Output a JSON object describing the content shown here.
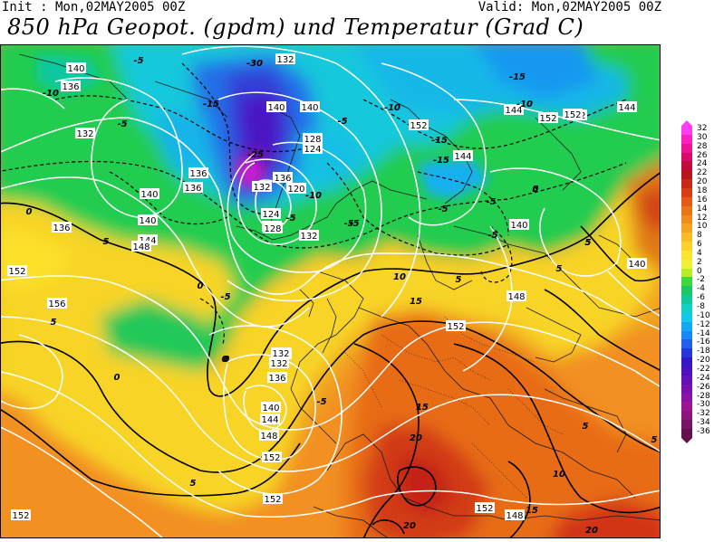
{
  "header": {
    "init": "Init : Mon,02MAY2005 00Z",
    "valid": "Valid: Mon,02MAY2005 00Z",
    "title": "850 hPa Geopot. (gpdm) und Temperatur (Grad C)"
  },
  "legend": {
    "entries": [
      {
        "label": "32",
        "color": "#ff3df2"
      },
      {
        "label": "30",
        "color": "#ff20c4"
      },
      {
        "label": "28",
        "color": "#ee1296"
      },
      {
        "label": "26",
        "color": "#d80a6a"
      },
      {
        "label": "24",
        "color": "#c40a3c"
      },
      {
        "label": "22",
        "color": "#b8141e"
      },
      {
        "label": "20",
        "color": "#c82814"
      },
      {
        "label": "18",
        "color": "#d83e14"
      },
      {
        "label": "16",
        "color": "#e45a14"
      },
      {
        "label": "14",
        "color": "#ec7418"
      },
      {
        "label": "12",
        "color": "#f08c1c"
      },
      {
        "label": "10",
        "color": "#f4a420"
      },
      {
        "label": "8",
        "color": "#f8bc24"
      },
      {
        "label": "6",
        "color": "#fcd228"
      },
      {
        "label": "4",
        "color": "#fce42c"
      },
      {
        "label": "2",
        "color": "#f0f034"
      },
      {
        "label": "0",
        "color": "#b8ec24"
      },
      {
        "label": "-2",
        "color": "#3cd83c"
      },
      {
        "label": "-4",
        "color": "#1cc864"
      },
      {
        "label": "-6",
        "color": "#10c898"
      },
      {
        "label": "-8",
        "color": "#10d0c8"
      },
      {
        "label": "-10",
        "color": "#14c8ec"
      },
      {
        "label": "-12",
        "color": "#14a8f4"
      },
      {
        "label": "-14",
        "color": "#1888f4"
      },
      {
        "label": "-16",
        "color": "#2060ec"
      },
      {
        "label": "-18",
        "color": "#2838d8"
      },
      {
        "label": "-20",
        "color": "#3418c8"
      },
      {
        "label": "-22",
        "color": "#4c10c0"
      },
      {
        "label": "-24",
        "color": "#6410b8"
      },
      {
        "label": "-26",
        "color": "#7a10b0"
      },
      {
        "label": "-28",
        "color": "#8c10a4"
      },
      {
        "label": "-30",
        "color": "#9c1494"
      },
      {
        "label": "-32",
        "color": "#8c147c"
      },
      {
        "label": "-34",
        "color": "#781464"
      },
      {
        "label": "-36",
        "color": "#64104c"
      }
    ]
  },
  "map": {
    "geopotential_labels": [
      {
        "text": "140"
      },
      {
        "text": "136"
      },
      {
        "text": "132"
      },
      {
        "text": "140"
      },
      {
        "text": "140"
      },
      {
        "text": "132"
      },
      {
        "text": "128"
      },
      {
        "text": "124"
      },
      {
        "text": "136"
      },
      {
        "text": "132"
      },
      {
        "text": "128"
      },
      {
        "text": "124"
      },
      {
        "text": "120"
      },
      {
        "text": "128"
      },
      {
        "text": "136"
      },
      {
        "text": "140"
      },
      {
        "text": "144"
      },
      {
        "text": "136"
      },
      {
        "text": "148"
      },
      {
        "text": "152"
      },
      {
        "text": "156"
      },
      {
        "text": "132"
      },
      {
        "text": "132"
      },
      {
        "text": "148"
      },
      {
        "text": "152"
      },
      {
        "text": "152"
      },
      {
        "text": "144"
      },
      {
        "text": "152"
      },
      {
        "text": "140"
      },
      {
        "text": "132"
      },
      {
        "text": "132"
      },
      {
        "text": "136"
      },
      {
        "text": "140"
      },
      {
        "text": "144"
      },
      {
        "text": "148"
      },
      {
        "text": "152"
      },
      {
        "text": "152"
      },
      {
        "text": "152"
      },
      {
        "text": "152"
      },
      {
        "text": "148"
      },
      {
        "text": "144"
      },
      {
        "text": "140"
      },
      {
        "text": "148"
      },
      {
        "text": "152"
      },
      {
        "text": "152"
      },
      {
        "text": "144"
      },
      {
        "text": "136"
      },
      {
        "text": "140"
      }
    ],
    "temperature_labels": [
      {
        "text": "-5"
      },
      {
        "text": "-10"
      },
      {
        "text": "-5"
      },
      {
        "text": "-30"
      },
      {
        "text": "-15"
      },
      {
        "text": "-5"
      },
      {
        "text": "-10"
      },
      {
        "text": "-15"
      },
      {
        "text": "-15"
      },
      {
        "text": "-10"
      },
      {
        "text": "-15"
      },
      {
        "text": "-5"
      },
      {
        "text": "-25"
      },
      {
        "text": "-10"
      },
      {
        "text": "-5"
      },
      {
        "text": "-5"
      },
      {
        "text": "-5"
      },
      {
        "text": "-5"
      },
      {
        "text": "0"
      },
      {
        "text": "5"
      },
      {
        "text": "0"
      },
      {
        "text": "-5"
      },
      {
        "text": "0"
      },
      {
        "text": "5"
      },
      {
        "text": "0"
      },
      {
        "text": "5"
      },
      {
        "text": "10"
      },
      {
        "text": "5"
      },
      {
        "text": "15"
      },
      {
        "text": "5"
      },
      {
        "text": "15"
      },
      {
        "text": "20"
      },
      {
        "text": "10"
      },
      {
        "text": "15"
      },
      {
        "text": "5"
      },
      {
        "text": "20"
      },
      {
        "text": "20"
      },
      {
        "text": "5"
      },
      {
        "text": "0"
      },
      {
        "text": "5"
      },
      {
        "text": "0"
      },
      {
        "text": "5"
      },
      {
        "text": "-5"
      },
      {
        "text": "5"
      },
      {
        "text": "-5"
      }
    ]
  }
}
